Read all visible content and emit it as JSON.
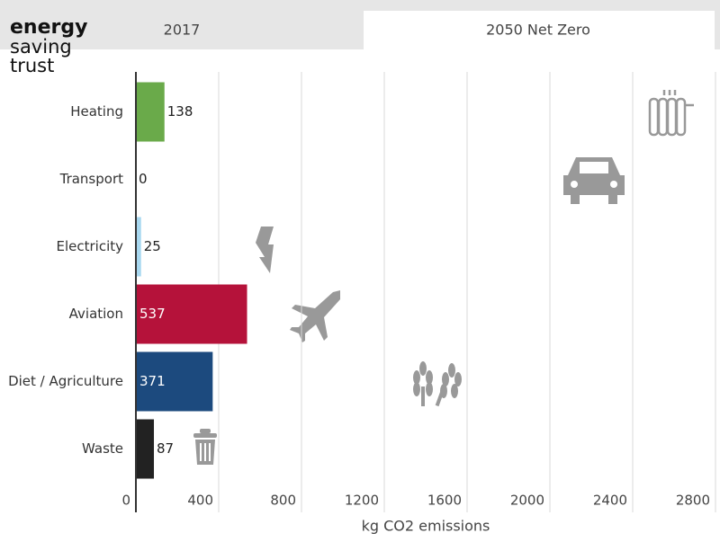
{
  "logo": [
    "energy",
    "saving",
    "trust"
  ],
  "tabs": [
    "2017",
    "2050 Net Zero"
  ],
  "chart_data": {
    "type": "bar",
    "orientation": "horizontal",
    "categories": [
      "Heating",
      "Transport",
      "Electricity",
      "Aviation",
      "Diet / Agriculture",
      "Waste"
    ],
    "values": [
      138,
      0,
      25,
      537,
      371,
      87
    ],
    "colors": [
      "#6aaa4a",
      "#888888",
      "#a8d8f0",
      "#b5123a",
      "#1c4a7e",
      "#222222"
    ],
    "xlim": [
      0,
      2800
    ],
    "xticks": [
      0,
      400,
      800,
      1200,
      1600,
      2000,
      2400,
      2800
    ],
    "xlabel": "kg CO2 emissions",
    "grid": true
  }
}
